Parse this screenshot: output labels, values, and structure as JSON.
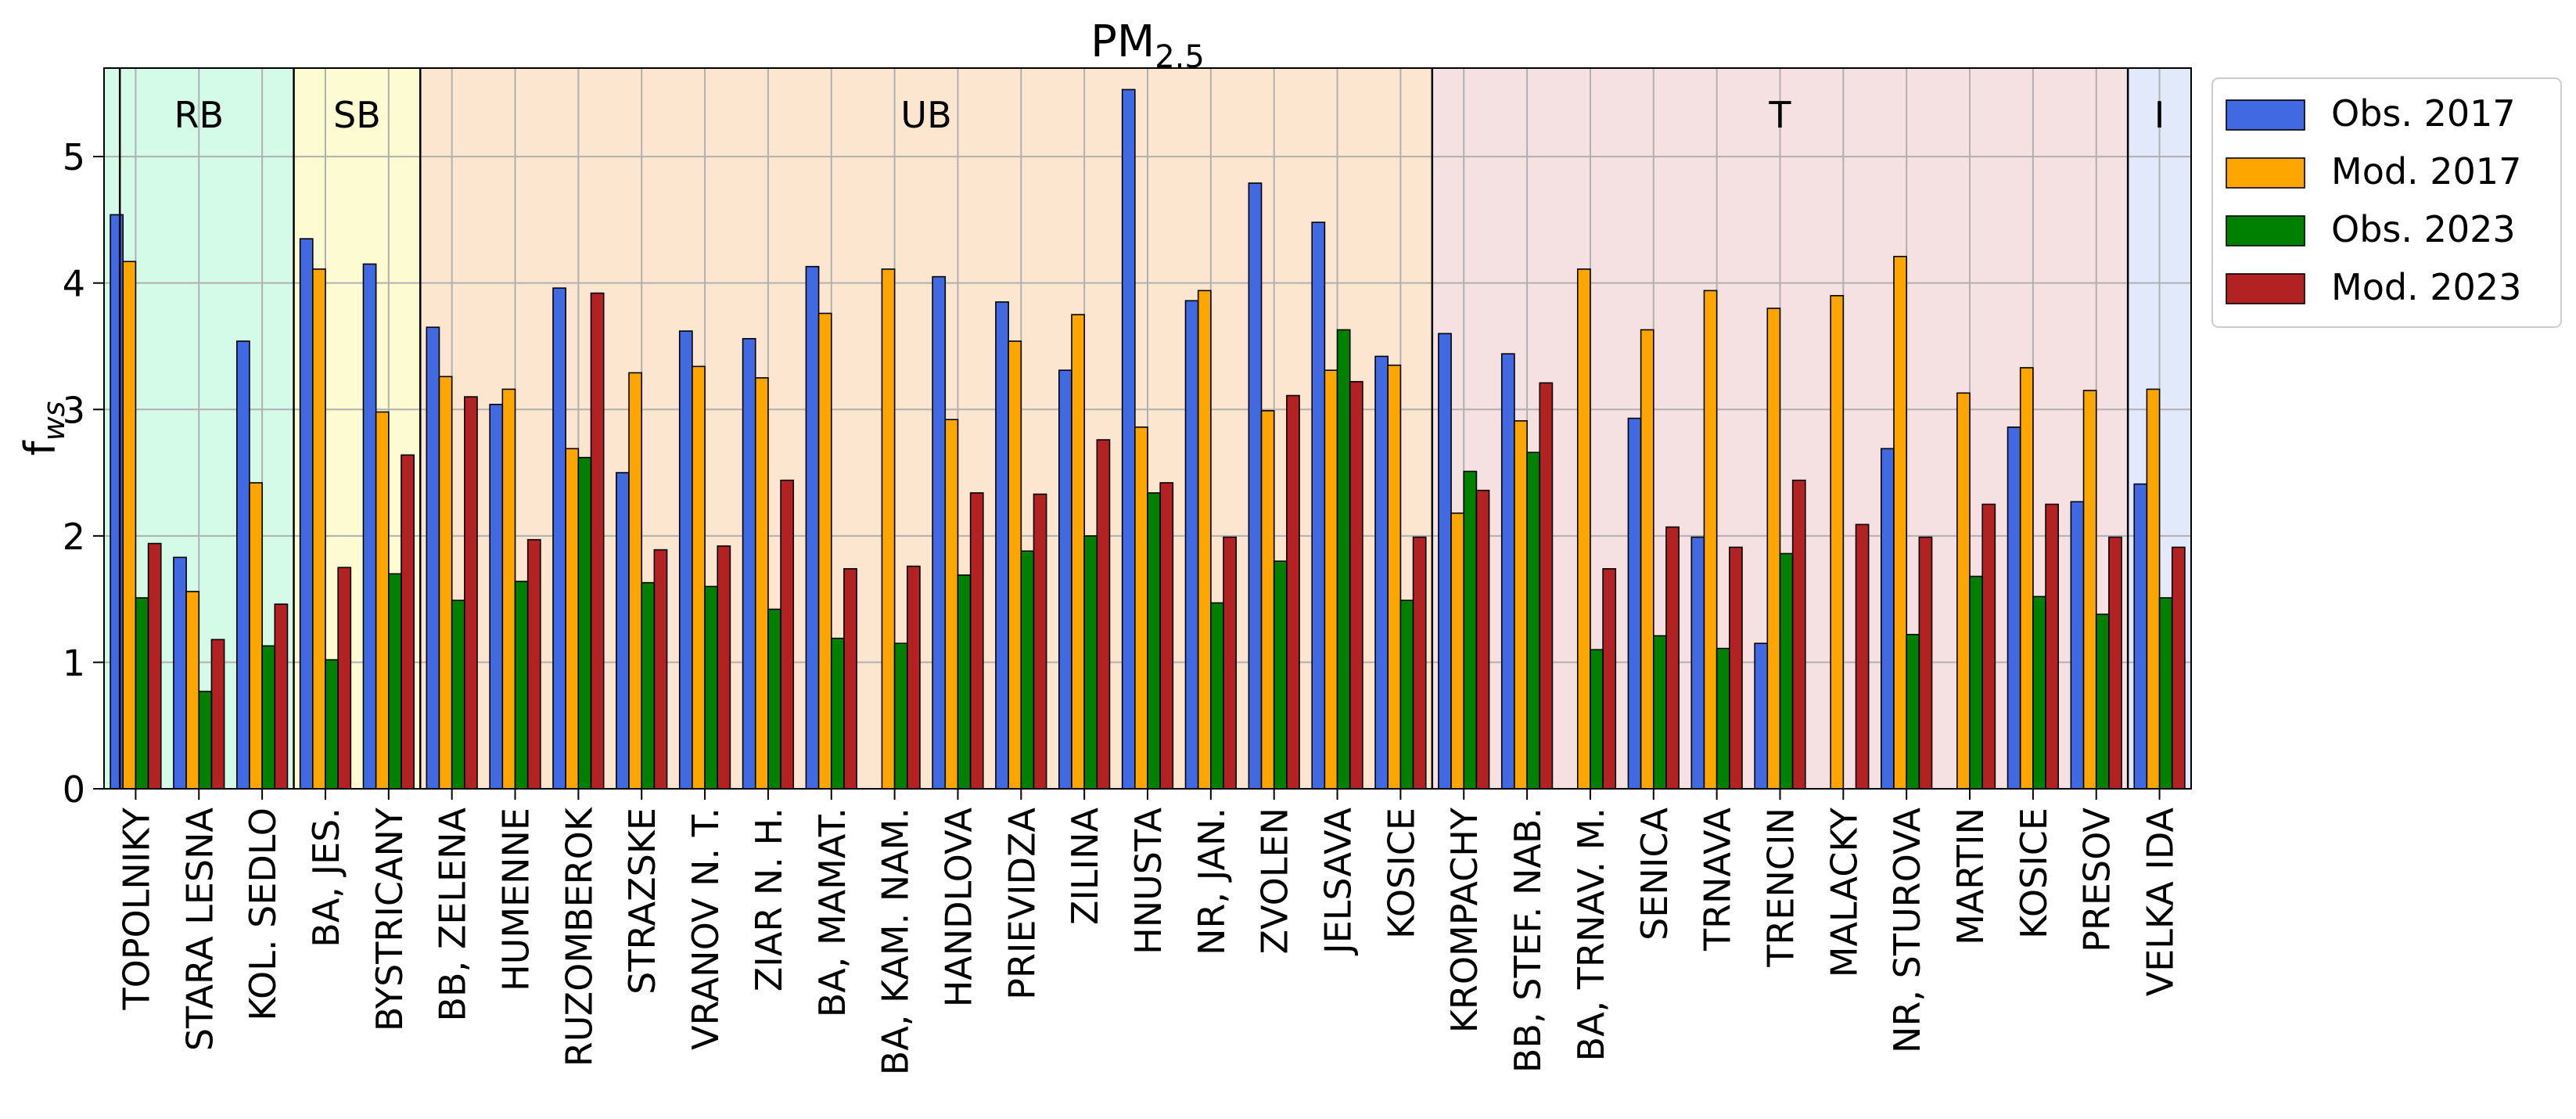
{
  "chart_data": {
    "type": "bar",
    "title_main": "PM",
    "title_sub": "2.5",
    "ylabel_main": "f",
    "ylabel_sub": "ws",
    "ylim": [
      0,
      5.7
    ],
    "yticks": [
      0,
      1,
      2,
      3,
      4,
      5
    ],
    "grid": true,
    "legend_position": "outside-top-right",
    "categories": [
      "TOPOLNIKY",
      "STARA LESNA",
      "KOL. SEDLO",
      "BA, JES.",
      "BYSTRICANY",
      "BB, ZELENA",
      "HUMENNE",
      "RUZOMBEROK",
      "STRAZSKE",
      "VRANOV N. T.",
      "ZIAR N. H.",
      "BA, MAMAT.",
      "BA, KAM. NAM.",
      "HANDLOVA",
      "PRIEVIDZA",
      "ZILINA",
      "HNUSTA",
      "NR, JAN.",
      "ZVOLEN",
      "JELSAVA",
      "KOSICE",
      "KROMPACHY",
      "BB, STEF. NAB.",
      "BA, TRNAV. M.",
      "SENICA",
      "TRNAVA",
      "TRENCIN",
      "MALACKY",
      "NR, STUROVA",
      "MARTIN",
      "KOSICE",
      "PRESOV",
      "VELKA IDA"
    ],
    "series": [
      {
        "name": "Obs. 2017",
        "color": "#4169e1",
        "values": [
          4.54,
          1.83,
          3.54,
          4.35,
          4.15,
          3.65,
          3.04,
          3.96,
          2.5,
          3.62,
          3.56,
          4.13,
          null,
          4.05,
          3.85,
          3.31,
          5.53,
          3.86,
          4.79,
          4.48,
          3.42,
          3.6,
          3.44,
          null,
          2.93,
          1.99,
          1.15,
          null,
          2.69,
          null,
          2.86,
          2.27,
          2.41
        ]
      },
      {
        "name": "Mod. 2017",
        "color": "#ffa500",
        "values": [
          4.17,
          1.56,
          2.42,
          4.11,
          2.98,
          3.26,
          3.16,
          2.69,
          3.29,
          3.34,
          3.25,
          3.76,
          4.11,
          2.92,
          3.54,
          3.75,
          2.86,
          3.94,
          2.99,
          3.31,
          3.35,
          2.18,
          2.91,
          4.11,
          3.63,
          3.94,
          3.8,
          3.9,
          4.21,
          3.13,
          3.33,
          3.15,
          3.16
        ]
      },
      {
        "name": "Obs. 2023",
        "color": "#008000",
        "values": [
          1.51,
          0.77,
          1.13,
          1.02,
          1.7,
          1.49,
          1.64,
          2.62,
          1.63,
          1.6,
          1.42,
          1.19,
          1.15,
          1.69,
          1.88,
          2.0,
          2.34,
          1.47,
          1.8,
          3.63,
          1.49,
          2.51,
          2.66,
          1.1,
          1.21,
          1.11,
          1.86,
          null,
          1.22,
          1.68,
          1.52,
          1.38,
          1.51
        ]
      },
      {
        "name": "Mod. 2023",
        "color": "#b22222",
        "values": [
          1.94,
          1.18,
          1.46,
          1.75,
          2.64,
          3.1,
          1.97,
          3.92,
          1.89,
          1.92,
          2.44,
          1.74,
          1.76,
          2.34,
          2.33,
          2.76,
          2.42,
          1.99,
          3.11,
          3.22,
          1.99,
          2.36,
          3.21,
          1.74,
          2.07,
          1.91,
          2.44,
          2.09,
          1.99,
          2.25,
          2.25,
          1.99,
          1.91
        ]
      }
    ],
    "regions": [
      {
        "label": "RB",
        "start": 0,
        "end": 2,
        "color": "#d4fbe8"
      },
      {
        "label": "SB",
        "start": 3,
        "end": 4,
        "color": "#fdfbd2"
      },
      {
        "label": "UB",
        "start": 5,
        "end": 20,
        "color": "#fde6d0"
      },
      {
        "label": "T",
        "start": 21,
        "end": 31,
        "color": "#f5e1e1"
      },
      {
        "label": "I",
        "start": 32,
        "end": 32,
        "color": "#e1e9fb"
      }
    ]
  }
}
